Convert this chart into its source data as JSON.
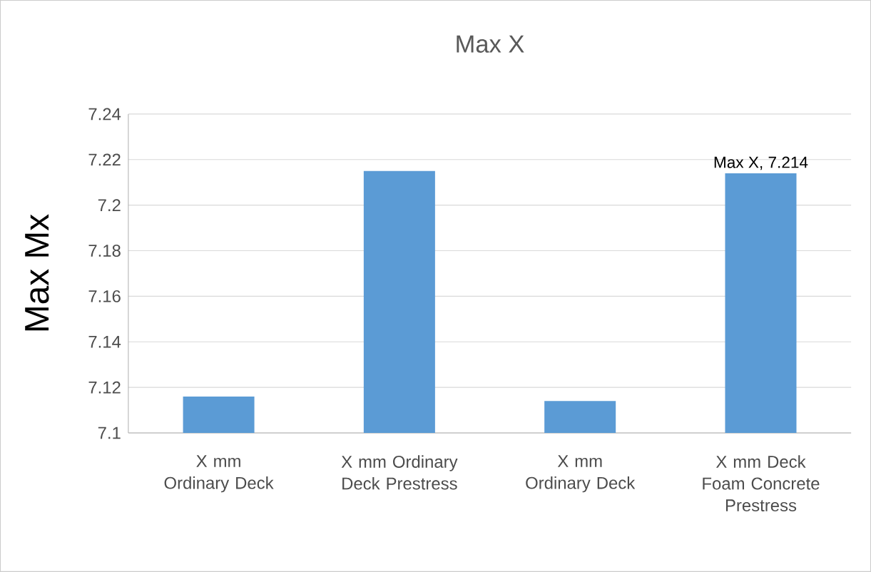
{
  "chart_data": {
    "type": "bar",
    "title": "Max X",
    "ylabel": "Max Mx",
    "categories": [
      "X mm Ordinary Deck",
      "X mm Ordinary Deck Prestress",
      "X mm Ordinary Deck",
      "X mm Deck Foam Concrete Prestress"
    ],
    "values": [
      7.116,
      7.215,
      7.114,
      7.214
    ],
    "color": "#5b9bd5",
    "value_labels": [
      null,
      null,
      null,
      "Max X, 7.214"
    ],
    "ylim": [
      7.1,
      7.24
    ],
    "yticks": [
      7.1,
      7.12,
      7.14,
      7.16,
      7.18,
      7.2,
      7.22,
      7.24
    ],
    "grid": "y"
  }
}
